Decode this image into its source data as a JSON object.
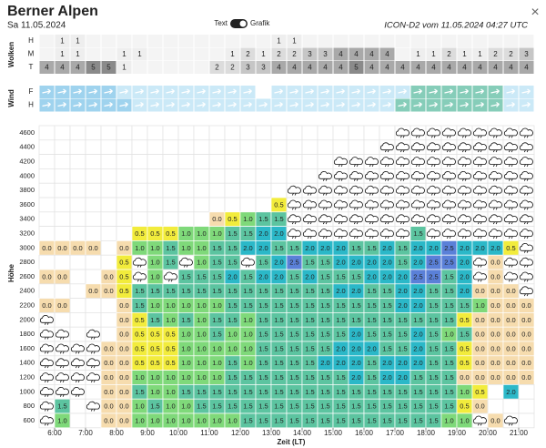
{
  "header": {
    "title": "Berner Alpen",
    "date": "Sa 11.05.2024",
    "toggle_left": "Text",
    "toggle_right": "Grafik",
    "model_run": "ICON-D2 vom 11.05.2024 04:27 UTC",
    "close": "×"
  },
  "clouds_section": {
    "label": "Wolken",
    "colors": {
      "1": "#eeeeee",
      "2": "#dcdcdc",
      "3": "#c6c6c6",
      "4": "#a9a9a9",
      "5": "#8a8a8a"
    },
    "rows": [
      {
        "label": "H",
        "cells": [
          null,
          "1",
          "1",
          null,
          null,
          null,
          null,
          null,
          null,
          null,
          null,
          null,
          null,
          null,
          null,
          "1",
          "1",
          null,
          null,
          null,
          null,
          null,
          null,
          null,
          null,
          null,
          null,
          null,
          null,
          null,
          null,
          null
        ]
      },
      {
        "label": "M",
        "cells": [
          null,
          "1",
          "1",
          null,
          null,
          "1",
          "1",
          null,
          null,
          null,
          null,
          null,
          "1",
          "2",
          "1",
          "2",
          "2",
          "3",
          "3",
          "4",
          "4",
          "4",
          "4",
          null,
          "1",
          "1",
          "2",
          "1",
          "1",
          "2",
          "2",
          "3"
        ]
      },
      {
        "label": "T",
        "cells": [
          "4",
          "4",
          "4",
          "5",
          "5",
          "1",
          null,
          null,
          null,
          null,
          null,
          "2",
          "2",
          "3",
          "3",
          "4",
          "4",
          "4",
          "4",
          "4",
          "5",
          "4",
          "4",
          "4",
          "4",
          "4",
          "4",
          "4",
          "4",
          "4",
          "4",
          "4"
        ]
      }
    ]
  },
  "wind_section": {
    "label": "Wind",
    "rows": [
      {
        "label": "F",
        "colors": [
          "#9fd3ee",
          "#9fd3ee",
          "#9fd3ee",
          "#9fd3ee",
          "#9fd3ee",
          "#cbe9f7",
          "#cbe9f7",
          "#cbe9f7",
          "#cbe9f7",
          "#cbe9f7",
          "#cbe9f7",
          "#cbe9f7",
          "#cbe9f7",
          "#cbe9f7",
          "#ffffff",
          "#cbe9f7",
          "#cbe9f7",
          "#cbe9f7",
          "#cbe9f7",
          "#cbe9f7",
          "#cbe9f7",
          "#cbe9f7",
          "#cbe9f7",
          "#cbe9f7",
          "#86cdb9",
          "#86cdb9",
          "#86cdb9",
          "#86cdb9",
          "#86cdb9",
          "#86cdb9",
          "#cbe9f7",
          "#cbe9f7"
        ]
      },
      {
        "label": "H",
        "colors": [
          "#9fd3ee",
          "#9fd3ee",
          "#9fd3ee",
          "#9fd3ee",
          "#9fd3ee",
          "#9fd3ee",
          "#cbe9f7",
          "#cbe9f7",
          "#cbe9f7",
          "#cbe9f7",
          "#cbe9f7",
          "#cbe9f7",
          "#cbe9f7",
          "#cbe9f7",
          "#cbe9f7",
          "#cbe9f7",
          "#cbe9f7",
          "#cbe9f7",
          "#cbe9f7",
          "#cbe9f7",
          "#cbe9f7",
          "#cbe9f7",
          "#cbe9f7",
          "#86cdb9",
          "#86cdb9",
          "#86cdb9",
          "#86cdb9",
          "#86cdb9",
          "#86cdb9",
          "#86cdb9",
          "#cbe9f7",
          "#cbe9f7"
        ]
      }
    ]
  },
  "height_section": {
    "label": "Höhe",
    "colors": {
      "0.0": "#f6dcae",
      "0.5": "#f2ec3c",
      "1.0": "#7fd97a",
      "1.5": "#5cc4a0",
      "2.0": "#2bb8c8",
      "2.5": "#5a80d8"
    },
    "rows": [
      {
        "label": "4600",
        "cells": [
          null,
          null,
          null,
          null,
          null,
          null,
          null,
          null,
          null,
          null,
          null,
          null,
          null,
          null,
          null,
          null,
          null,
          null,
          null,
          null,
          null,
          null,
          null,
          null,
          null,
          null,
          null,
          null,
          null,
          null,
          null,
          null
        ],
        "clouds": [
          23,
          24,
          25,
          26,
          27,
          28,
          29,
          30,
          31
        ]
      },
      {
        "label": "4400",
        "cells": [
          null,
          null,
          null,
          null,
          null,
          null,
          null,
          null,
          null,
          null,
          null,
          null,
          null,
          null,
          null,
          null,
          null,
          null,
          null,
          null,
          null,
          null,
          null,
          null,
          null,
          null,
          null,
          null,
          null,
          null,
          null,
          null
        ],
        "clouds": [
          22,
          23,
          24,
          25,
          26,
          27,
          28,
          29,
          30,
          31
        ]
      },
      {
        "label": "4200",
        "cells": [
          null,
          null,
          null,
          null,
          null,
          null,
          null,
          null,
          null,
          null,
          null,
          null,
          null,
          null,
          null,
          null,
          null,
          null,
          null,
          null,
          null,
          null,
          null,
          null,
          null,
          null,
          null,
          null,
          null,
          null,
          null,
          null
        ],
        "clouds": [
          19,
          20,
          21,
          22,
          23,
          24,
          25,
          26,
          27,
          28,
          29,
          30,
          31
        ]
      },
      {
        "label": "4000",
        "cells": [
          null,
          null,
          null,
          null,
          null,
          null,
          null,
          null,
          null,
          null,
          null,
          null,
          null,
          null,
          null,
          null,
          null,
          null,
          null,
          null,
          null,
          null,
          null,
          null,
          null,
          null,
          null,
          null,
          null,
          null,
          null,
          null
        ],
        "clouds": [
          18,
          19,
          20,
          21,
          22,
          23,
          24,
          25,
          26,
          27,
          28,
          29,
          30,
          31
        ]
      },
      {
        "label": "3800",
        "cells": [
          null,
          null,
          null,
          null,
          null,
          null,
          null,
          null,
          null,
          null,
          null,
          null,
          null,
          null,
          null,
          null,
          null,
          null,
          null,
          null,
          null,
          null,
          null,
          null,
          null,
          null,
          null,
          null,
          null,
          null,
          null,
          null
        ],
        "clouds": [
          16,
          17,
          18,
          19,
          20,
          21,
          22,
          23,
          24,
          25,
          26,
          27,
          28,
          29,
          30,
          31
        ]
      },
      {
        "label": "3600",
        "cells": [
          null,
          null,
          null,
          null,
          null,
          null,
          null,
          null,
          null,
          null,
          null,
          null,
          null,
          null,
          null,
          "0.5",
          null,
          null,
          null,
          null,
          null,
          null,
          null,
          null,
          null,
          null,
          null,
          null,
          null,
          null,
          null,
          null
        ],
        "clouds": [
          16,
          17,
          18,
          19,
          20,
          21,
          22,
          23,
          24,
          25,
          26,
          27,
          28,
          29,
          30,
          31
        ]
      },
      {
        "label": "3400",
        "cells": [
          null,
          null,
          null,
          null,
          null,
          null,
          null,
          null,
          null,
          null,
          null,
          "0.0",
          "0.5",
          "1.0",
          "1.5",
          "1.5",
          null,
          null,
          null,
          null,
          null,
          null,
          null,
          null,
          null,
          null,
          null,
          null,
          null,
          null,
          null,
          null
        ],
        "clouds": [
          16,
          17,
          18,
          19,
          20,
          21,
          22,
          23,
          24,
          25,
          26,
          27,
          28,
          29,
          30,
          31
        ]
      },
      {
        "label": "3200",
        "cells": [
          null,
          null,
          null,
          null,
          null,
          null,
          "0.5",
          "0.5",
          "0.5",
          "1.0",
          "1.0",
          "1.0",
          "1.5",
          "1.5",
          "2.0",
          "2.0",
          null,
          null,
          null,
          null,
          null,
          null,
          null,
          null,
          "1.5",
          null,
          null,
          null,
          null,
          null,
          null,
          null
        ],
        "clouds": [
          16,
          17,
          18,
          19,
          20,
          21,
          22,
          23,
          25,
          26,
          27,
          28,
          29,
          30,
          31
        ]
      },
      {
        "label": "3000",
        "cells": [
          "0.0",
          "0.0",
          "0.0",
          "0.0",
          null,
          "0.0",
          "1.0",
          "1.0",
          "1.5",
          "1.0",
          "1.0",
          "1.5",
          "1.5",
          "2.0",
          "2.0",
          "1.5",
          "1.5",
          "2.0",
          "2.0",
          "2.0",
          "1.5",
          "1.5",
          "2.0",
          "1.5",
          "2.0",
          "2.0",
          "2.5",
          "2.0",
          "2.0",
          "2.0",
          "0.5",
          null
        ],
        "clouds": [
          31
        ]
      },
      {
        "label": "2800",
        "cells": [
          null,
          null,
          null,
          null,
          null,
          "0.5",
          null,
          "1.0",
          "1.5",
          null,
          "1.0",
          "1.5",
          "1.5",
          null,
          "1.5",
          "2.0",
          "2.5",
          "1.5",
          "1.5",
          "2.0",
          "2.0",
          "2.0",
          "2.0",
          "1.5",
          "2.0",
          "2.5",
          "2.5",
          "2.0",
          null,
          "0.0",
          null,
          null
        ],
        "clouds": [
          6,
          9,
          13,
          28,
          30,
          31
        ]
      },
      {
        "label": "2600",
        "cells": [
          "0.0",
          "0.0",
          null,
          null,
          "0.0",
          "0.5",
          null,
          "1.0",
          null,
          "1.5",
          "1.5",
          "1.5",
          "2.0",
          "1.5",
          "2.0",
          "2.0",
          "1.5",
          "2.0",
          "1.5",
          "1.5",
          "1.5",
          "2.0",
          "2.0",
          "2.0",
          "2.5",
          "2.5",
          "1.5",
          "2.0",
          null,
          "0.0",
          null,
          null
        ],
        "clouds": [
          6,
          8,
          28,
          30,
          31
        ]
      },
      {
        "label": "2400",
        "cells": [
          null,
          null,
          null,
          "0.0",
          "0.0",
          "0.5",
          "1.5",
          "1.5",
          "1.5",
          "1.5",
          "1.5",
          "1.5",
          "1.5",
          "1.5",
          "1.5",
          "1.5",
          "1.5",
          "1.5",
          "1.5",
          "2.0",
          "2.0",
          "1.5",
          "1.5",
          "2.0",
          "2.0",
          "1.5",
          "1.5",
          "2.0",
          "0.0",
          "0.0",
          "0.0",
          null
        ],
        "clouds": [
          31
        ]
      },
      {
        "label": "2200",
        "cells": [
          "0.0",
          "0.0",
          null,
          null,
          null,
          "0.0",
          "1.5",
          "1.0",
          "1.0",
          "1.0",
          "1.0",
          "1.0",
          "1.5",
          "1.5",
          "1.5",
          "1.5",
          "1.5",
          "1.5",
          "1.5",
          "1.5",
          "1.5",
          "1.5",
          "1.5",
          "2.0",
          "2.0",
          "1.5",
          "1.5",
          "1.5",
          "1.0",
          "0.0",
          "0.0",
          "0.0"
        ],
        "clouds": []
      },
      {
        "label": "2000",
        "cells": [
          null,
          null,
          null,
          null,
          null,
          "0.0",
          "0.5",
          "1.5",
          "1.0",
          "1.5",
          "1.0",
          "1.5",
          "1.5",
          "1.0",
          "1.5",
          "1.5",
          "1.5",
          "1.5",
          "1.5",
          "1.5",
          "1.5",
          "1.5",
          "1.5",
          "1.5",
          "1.5",
          "1.5",
          "1.5",
          "0.5",
          "0.0",
          "0.0",
          "0.0",
          "0.0"
        ],
        "clouds": [
          0
        ]
      },
      {
        "label": "1800",
        "cells": [
          null,
          null,
          null,
          null,
          null,
          "0.0",
          "0.5",
          "0.5",
          "0.5",
          "1.0",
          "1.0",
          "1.5",
          "1.0",
          "1.0",
          "1.5",
          "1.5",
          "1.5",
          "1.5",
          "1.5",
          "1.5",
          "2.0",
          "1.5",
          "1.5",
          "1.5",
          "2.0",
          "1.5",
          "1.0",
          "1.5",
          "0.0",
          "0.0",
          "0.0",
          "0.0"
        ],
        "clouds": [
          0,
          1,
          3
        ]
      },
      {
        "label": "1600",
        "cells": [
          null,
          null,
          null,
          null,
          "0.0",
          "0.0",
          "0.5",
          "0.5",
          "0.5",
          "1.0",
          "1.0",
          "1.0",
          "1.0",
          "1.0",
          "1.5",
          "1.5",
          "1.5",
          "1.5",
          "1.5",
          "2.0",
          "2.0",
          "2.0",
          "1.5",
          "1.5",
          "2.0",
          "1.5",
          "1.5",
          "0.5",
          "0.0",
          "0.0",
          "0.0",
          "0.0"
        ],
        "clouds": [
          0,
          1,
          2,
          3
        ]
      },
      {
        "label": "1400",
        "cells": [
          null,
          null,
          null,
          null,
          "0.0",
          "0.0",
          "0.5",
          "0.5",
          "0.5",
          "1.0",
          "1.0",
          "1.0",
          "1.5",
          "1.0",
          "1.5",
          "1.5",
          "1.5",
          "1.5",
          "2.0",
          "2.0",
          "2.0",
          "1.5",
          "2.0",
          "2.0",
          "2.0",
          "1.5",
          "1.5",
          "0.5",
          "0.0",
          "0.0",
          "0.0",
          "0.0"
        ],
        "clouds": [
          0,
          1,
          2,
          3
        ]
      },
      {
        "label": "1200",
        "cells": [
          null,
          null,
          null,
          null,
          "0.0",
          "0.0",
          "1.0",
          "1.0",
          "1.0",
          "1.0",
          "1.0",
          "1.0",
          "1.5",
          "1.5",
          "1.5",
          "1.5",
          "1.5",
          "1.5",
          "1.5",
          "1.5",
          "2.0",
          "1.5",
          "2.0",
          "2.0",
          "1.5",
          "1.5",
          "1.5",
          "0.0",
          "0.0",
          "0.0",
          "0.0",
          "0.0"
        ],
        "clouds": [
          0,
          1,
          2,
          3
        ]
      },
      {
        "label": "1000",
        "cells": [
          null,
          null,
          null,
          null,
          "0.0",
          "0.0",
          "1.5",
          "1.0",
          "1.0",
          "1.5",
          "1.5",
          "1.5",
          "1.5",
          "1.5",
          "1.5",
          "1.5",
          "1.5",
          "1.5",
          "1.5",
          "1.5",
          "1.5",
          "1.5",
          "1.5",
          "1.5",
          "1.5",
          "1.5",
          "1.5",
          "1.0",
          "0.5",
          null,
          "2.0",
          null
        ],
        "clouds": [
          0,
          1,
          2
        ]
      },
      {
        "label": "800",
        "cells": [
          null,
          "1.5",
          null,
          null,
          "0.0",
          "0.0",
          "1.0",
          "1.5",
          "1.0",
          "1.0",
          "1.5",
          "1.5",
          "1.5",
          "1.5",
          "1.5",
          "1.5",
          "1.5",
          "1.5",
          "1.5",
          "1.5",
          "1.5",
          "1.5",
          "1.5",
          "1.5",
          "1.5",
          "1.5",
          "1.5",
          "0.5",
          "0.0",
          null,
          null,
          null
        ],
        "clouds": [
          0,
          3
        ]
      },
      {
        "label": "600",
        "cells": [
          null,
          "1.0",
          null,
          null,
          "0.0",
          "0.0",
          "1.0",
          "1.0",
          "1.0",
          "1.0",
          "1.0",
          "1.0",
          "1.0",
          "1.5",
          "1.5",
          "1.5",
          "1.5",
          "1.5",
          "1.5",
          "1.5",
          "1.5",
          "1.5",
          "1.5",
          "1.5",
          "1.5",
          "1.5",
          "1.0",
          "1.0",
          null,
          "0.0",
          null,
          null
        ],
        "clouds": [
          0,
          28,
          30
        ]
      }
    ]
  },
  "time_axis": {
    "label": "Zeit (LT)",
    "ticks": [
      "6:00",
      "7:00",
      "8:00",
      "9:00",
      "10:00",
      "11:00",
      "12:00",
      "13:00",
      "14:00",
      "15:00",
      "16:00",
      "17:00",
      "18:00",
      "19:00",
      "20:00",
      "21:00"
    ]
  }
}
